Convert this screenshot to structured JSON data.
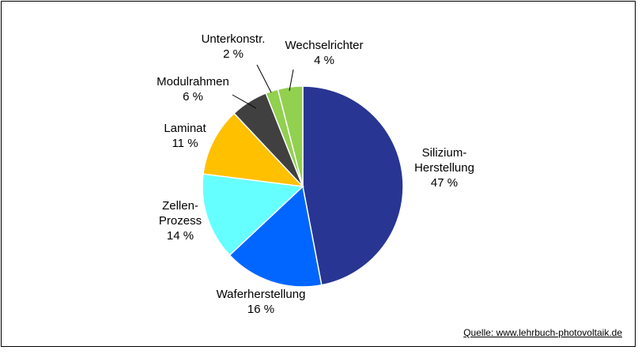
{
  "chart_data": {
    "type": "pie",
    "title": "",
    "slices": [
      {
        "label_lines": [
          "Silizium-",
          "Herstellung"
        ],
        "value": 47,
        "value_label": "47 %",
        "color": "#283593"
      },
      {
        "label_lines": [
          "Waferherstellung"
        ],
        "value": 16,
        "value_label": "16 %",
        "color": "#0066ff"
      },
      {
        "label_lines": [
          "Zellen-",
          "Prozess"
        ],
        "value": 14,
        "value_label": "14 %",
        "color": "#66ffff"
      },
      {
        "label_lines": [
          "Laminat"
        ],
        "value": 11,
        "value_label": "11 %",
        "color": "#ffc000"
      },
      {
        "label_lines": [
          "Modulrahmen"
        ],
        "value": 6,
        "value_label": "6 %",
        "color": "#404040"
      },
      {
        "label_lines": [
          "Unterkonstr."
        ],
        "value": 2,
        "value_label": "2 %",
        "color": "#92d050"
      },
      {
        "label_lines": [
          "Wechselrichter"
        ],
        "value": 4,
        "value_label": "4 %",
        "color": "#92d050"
      }
    ],
    "legend": "none"
  },
  "source": {
    "text": "Quelle: www.lehrbuch-photovoltaik.de"
  }
}
